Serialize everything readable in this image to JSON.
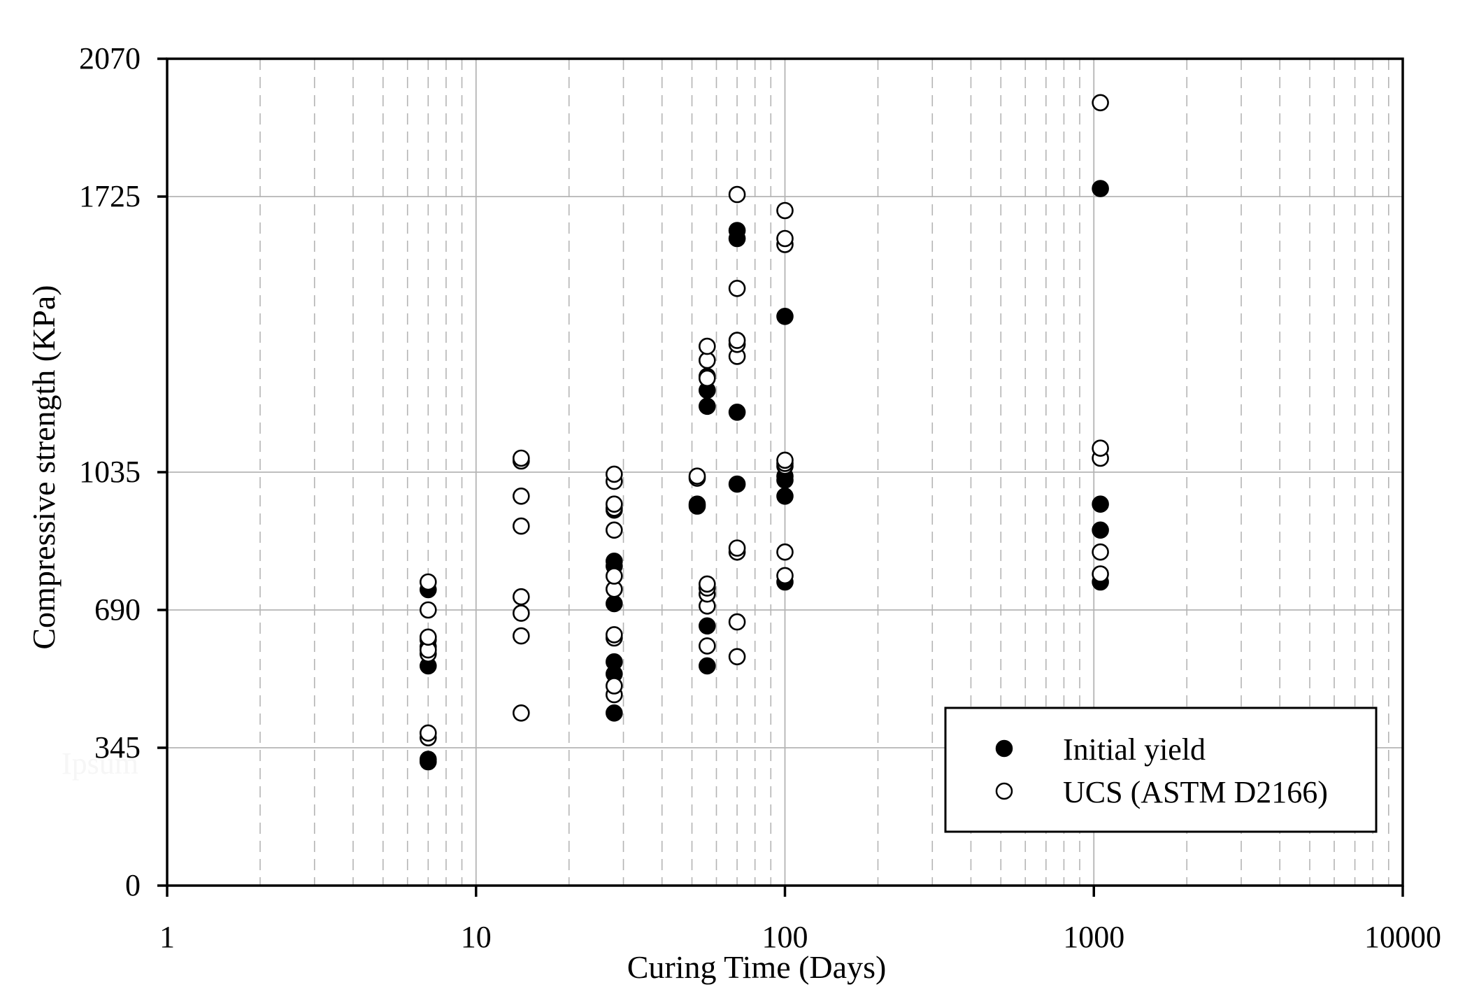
{
  "chart_data": {
    "type": "scatter",
    "xlabel": "Curing Time (Days)",
    "ylabel": "Compressive strength (KPa)",
    "xscale": "log",
    "xlim": [
      1,
      10000
    ],
    "ylim": [
      0,
      2070
    ],
    "x_tick_labels": [
      "1",
      "10",
      "100",
      "1000",
      "10000"
    ],
    "y_tick_labels": [
      "0",
      "345",
      "690",
      "1035",
      "1725",
      "2070"
    ],
    "grid": "major and minor (dashed) vertical, major horizontal",
    "legend_position": "bottom-right",
    "watermark": "Ipsum",
    "series": [
      {
        "name": "Initial yield",
        "marker": "filled-circle",
        "color": "#000000",
        "points": [
          [
            7,
            310
          ],
          [
            7,
            316
          ],
          [
            7,
            550
          ],
          [
            7,
            598
          ],
          [
            7,
            615
          ],
          [
            7,
            741
          ],
          [
            28,
            432
          ],
          [
            28,
            530
          ],
          [
            28,
            560
          ],
          [
            28,
            706
          ],
          [
            28,
            800
          ],
          [
            28,
            812
          ],
          [
            28,
            940
          ],
          [
            52,
            950
          ],
          [
            52,
            955
          ],
          [
            56,
            550
          ],
          [
            56,
            650
          ],
          [
            56,
            1200
          ],
          [
            56,
            1240
          ],
          [
            56,
            1275
          ],
          [
            70,
            1005
          ],
          [
            70,
            1185
          ],
          [
            70,
            1620
          ],
          [
            70,
            1640
          ],
          [
            100,
            760
          ],
          [
            100,
            975
          ],
          [
            100,
            1015
          ],
          [
            100,
            1025
          ],
          [
            100,
            1425
          ],
          [
            1050,
            760
          ],
          [
            1050,
            890
          ],
          [
            1050,
            955
          ],
          [
            1050,
            1745
          ]
        ]
      },
      {
        "name": "UCS (ASTM D2166)",
        "marker": "open-circle",
        "color": "#000000",
        "points": [
          [
            7,
            370
          ],
          [
            7,
            382
          ],
          [
            7,
            580
          ],
          [
            7,
            590
          ],
          [
            7,
            622
          ],
          [
            7,
            690
          ],
          [
            7,
            760
          ],
          [
            14,
            432
          ],
          [
            14,
            625
          ],
          [
            14,
            682
          ],
          [
            14,
            723
          ],
          [
            14,
            900
          ],
          [
            14,
            975
          ],
          [
            14,
            1063
          ],
          [
            14,
            1070
          ],
          [
            28,
            478
          ],
          [
            28,
            500
          ],
          [
            28,
            620
          ],
          [
            28,
            628
          ],
          [
            28,
            742
          ],
          [
            28,
            775
          ],
          [
            28,
            890
          ],
          [
            28,
            945
          ],
          [
            28,
            955
          ],
          [
            28,
            1012
          ],
          [
            28,
            1030
          ],
          [
            52,
            1020
          ],
          [
            52,
            1025
          ],
          [
            56,
            600
          ],
          [
            56,
            700
          ],
          [
            56,
            730
          ],
          [
            56,
            745
          ],
          [
            56,
            755
          ],
          [
            56,
            1270
          ],
          [
            56,
            1315
          ],
          [
            56,
            1350
          ],
          [
            70,
            573
          ],
          [
            70,
            660
          ],
          [
            70,
            835
          ],
          [
            70,
            845
          ],
          [
            70,
            1325
          ],
          [
            70,
            1355
          ],
          [
            70,
            1365
          ],
          [
            70,
            1495
          ],
          [
            70,
            1730
          ],
          [
            100,
            776
          ],
          [
            100,
            835
          ],
          [
            100,
            1050
          ],
          [
            100,
            1057
          ],
          [
            100,
            1065
          ],
          [
            100,
            1605
          ],
          [
            100,
            1620
          ],
          [
            100,
            1690
          ],
          [
            1050,
            780
          ],
          [
            1050,
            835
          ],
          [
            1050,
            1070
          ],
          [
            1050,
            1095
          ],
          [
            1050,
            1960
          ]
        ]
      }
    ]
  }
}
